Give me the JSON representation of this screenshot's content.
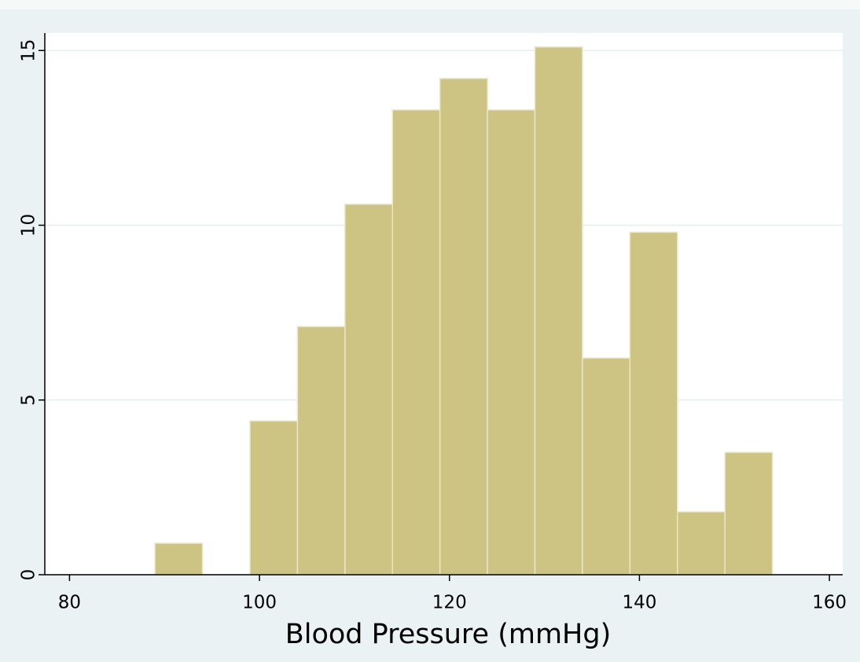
{
  "chart_data": {
    "type": "histogram",
    "x_label": "Blood Pressure (mmHg)",
    "bins": [
      89,
      94,
      99,
      104,
      109,
      114,
      119,
      124,
      129,
      134,
      139,
      144,
      149,
      154
    ],
    "values": [
      0.9,
      0,
      4.4,
      7.1,
      10.6,
      13.3,
      14.2,
      13.3,
      15.1,
      6.2,
      9.8,
      1.8,
      3.5
    ],
    "color": "#cdc383",
    "xlim": [
      77.4,
      161.4
    ],
    "xticks": [
      80,
      100,
      120,
      140,
      160
    ],
    "ylim": [
      0,
      15.5
    ],
    "yticks": [
      0,
      5,
      10,
      15
    ],
    "grid": true
  }
}
